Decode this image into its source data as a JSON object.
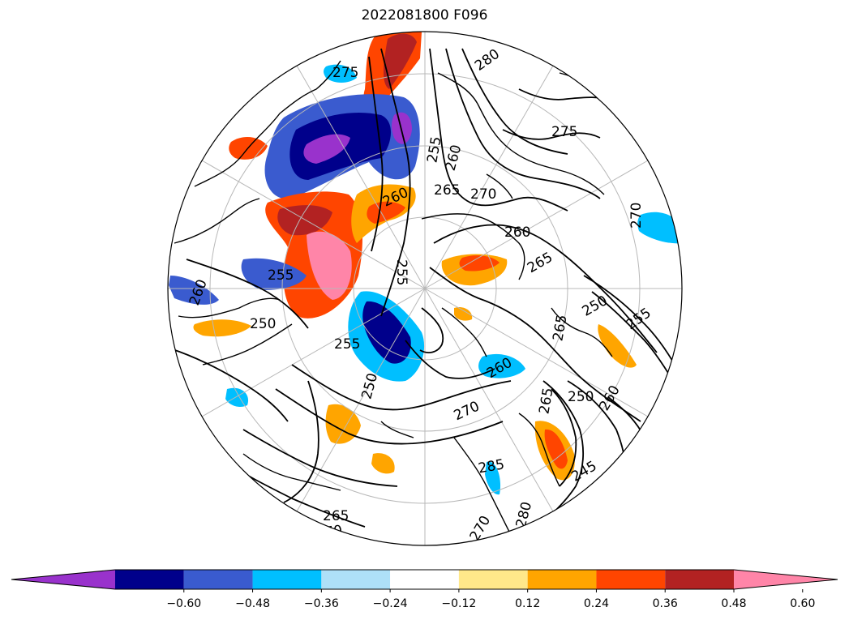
{
  "title": "2022081800 F096",
  "colorbar": {
    "bins": [
      {
        "color": "#9932cc"
      },
      {
        "color": "#00008b"
      },
      {
        "color": "#3a5bcf"
      },
      {
        "color": "#00bfff"
      },
      {
        "color": "#aee0f8"
      },
      {
        "color": "#ffffff"
      },
      {
        "color": "#ffe88a"
      },
      {
        "color": "#ffa500"
      },
      {
        "color": "#ff4500"
      },
      {
        "color": "#b22222"
      },
      {
        "color": "#ff85a8"
      }
    ],
    "ticks": [
      "−0.60",
      "−0.48",
      "−0.36",
      "−0.24",
      "−0.12",
      "0.12",
      "0.24",
      "0.36",
      "0.48",
      "0.60"
    ]
  },
  "contour_labels": [
    "280",
    "275",
    "275",
    "270",
    "270",
    "265",
    "265",
    "260",
    "260",
    "260",
    "260",
    "255",
    "255",
    "255",
    "255",
    "255",
    "250",
    "250",
    "250",
    "260",
    "265",
    "250",
    "245",
    "260",
    "270",
    "265",
    "265",
    "270",
    "270",
    "280",
    "285"
  ]
}
